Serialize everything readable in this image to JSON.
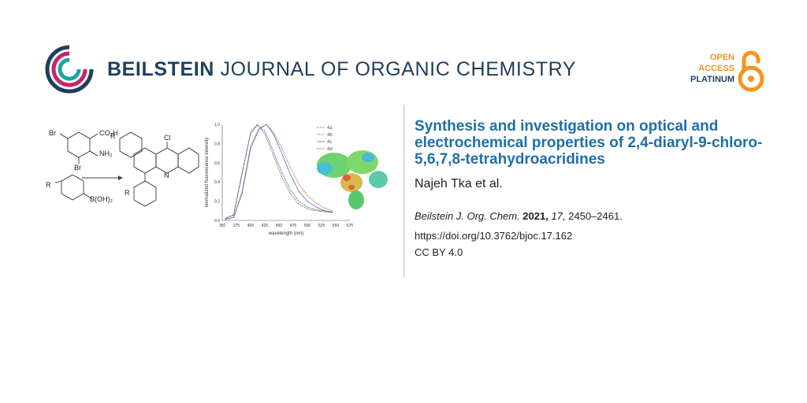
{
  "header": {
    "journal_bold": "BEILSTEIN",
    "journal_rest": " JOURNAL OF ORGANIC CHEMISTRY",
    "open_access": [
      "OPEN",
      "ACCESS"
    ],
    "platinum": "PLATINUM"
  },
  "article": {
    "title": "Synthesis and investigation on optical and electrochemical properties of 2,4-diaryl-9-chloro-5,6,7,8-tetrahydroacridines",
    "authors": "Najeh Tka et al.",
    "citation": {
      "journal": "Beilstein J. Org. Chem.",
      "year": "2021,",
      "volume": "17,",
      "pages": "2450–2461."
    },
    "doi": "https://doi.org/10.3762/bjoc.17.162",
    "license": "CC BY 4.0"
  },
  "graphic": {
    "reactant_labels": [
      "Br",
      "CO₂H",
      "NH₂",
      "Br",
      "R",
      "B(OH)₂"
    ],
    "product_labels": [
      "Cl",
      "N",
      "R",
      "R"
    ]
  },
  "chart_data": {
    "type": "line",
    "xlabel": "wavelength (nm)",
    "ylabel": "normalized fluorescence intensity",
    "xlim": [
      350,
      575
    ],
    "ylim": [
      0,
      1.0
    ],
    "x_ticks": [
      "350",
      "375",
      "400",
      "425",
      "450",
      "475",
      "500",
      "525",
      "550",
      "575"
    ],
    "y_ticks": [
      "0.0",
      "0.2",
      "0.4",
      "0.6",
      "0.8",
      "1.0"
    ],
    "legend": [
      "4a",
      "4b",
      "4c",
      "4d"
    ],
    "legend_position": "top-right",
    "colors": [
      "#333333",
      "#c04040",
      "#4a6fd0",
      "#555555"
    ],
    "series": [
      {
        "name": "4a",
        "x": [
          355,
          370,
          385,
          400,
          412,
          425,
          440,
          455,
          470,
          485,
          500,
          515,
          530,
          545
        ],
        "y": [
          0.02,
          0.05,
          0.48,
          0.92,
          1.0,
          0.9,
          0.68,
          0.45,
          0.28,
          0.17,
          0.12,
          0.1,
          0.09,
          0.08
        ]
      },
      {
        "name": "4b",
        "x": [
          355,
          370,
          385,
          400,
          415,
          428,
          440,
          455,
          470,
          485,
          500,
          515,
          530,
          545
        ],
        "y": [
          0.01,
          0.03,
          0.3,
          0.78,
          0.96,
          1.0,
          0.92,
          0.75,
          0.55,
          0.38,
          0.26,
          0.18,
          0.13,
          0.1
        ]
      },
      {
        "name": "4c",
        "x": [
          355,
          370,
          385,
          400,
          415,
          428,
          440,
          455,
          470,
          485,
          500,
          515,
          530,
          545
        ],
        "y": [
          0.01,
          0.03,
          0.28,
          0.75,
          0.95,
          1.0,
          0.9,
          0.7,
          0.48,
          0.3,
          0.2,
          0.14,
          0.1,
          0.08
        ]
      },
      {
        "name": "4d",
        "x": [
          355,
          370,
          385,
          400,
          412,
          425,
          440,
          455,
          470,
          485,
          500,
          515,
          530,
          545
        ],
        "y": [
          0.02,
          0.06,
          0.5,
          0.9,
          0.99,
          0.93,
          0.72,
          0.5,
          0.32,
          0.2,
          0.14,
          0.11,
          0.1,
          0.09
        ]
      }
    ]
  }
}
